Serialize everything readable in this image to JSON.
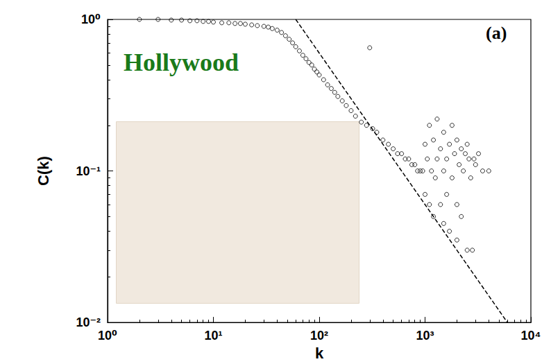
{
  "chart_data": {
    "type": "scatter",
    "x_label": "k",
    "y_label": "C(k)",
    "annotations": [
      {
        "text": "Hollywood",
        "color": "#1a7a1a"
      },
      {
        "text": "(a)",
        "color": "#000000"
      }
    ],
    "log": true,
    "grid": false,
    "xlim": [
      1,
      10000
    ],
    "ylim": [
      0.01,
      1
    ],
    "xticks": [
      {
        "value": 1,
        "label": "10⁰"
      },
      {
        "value": 10,
        "label": "10¹"
      },
      {
        "value": 100,
        "label": "10²"
      },
      {
        "value": 1000,
        "label": "10³"
      },
      {
        "value": 10000,
        "label": "10⁴"
      }
    ],
    "yticks": [
      {
        "value": 0.01,
        "label": "10⁻²"
      },
      {
        "value": 0.1,
        "label": "10⁻¹"
      },
      {
        "value": 1,
        "label": "10⁰"
      }
    ],
    "series": [
      {
        "type": "scatter",
        "marker": "circle-open",
        "color": "#000000",
        "x": [
          2,
          3,
          4,
          5,
          6,
          7,
          8,
          9,
          10,
          12,
          14,
          16,
          18,
          20,
          23,
          26,
          30,
          33,
          36,
          40,
          44,
          48,
          52,
          56,
          60,
          65,
          70,
          75,
          80,
          85,
          90,
          95,
          100,
          110,
          120,
          130,
          140,
          150,
          165,
          180,
          200,
          220,
          250,
          280,
          300,
          320,
          350,
          400,
          450,
          500,
          550,
          600,
          650,
          700,
          750,
          800,
          850,
          900,
          950,
          1000,
          1000,
          1050,
          1100,
          1100,
          1150,
          1200,
          1200,
          1250,
          1300,
          1300,
          1400,
          1400,
          1500,
          1500,
          1500,
          1600,
          1600,
          1700,
          1700,
          1800,
          1800,
          1900,
          2000,
          2000,
          2000,
          2100,
          2200,
          2200,
          2300,
          2400,
          2500,
          2500,
          2600,
          2700,
          2800,
          2900,
          3000,
          3200,
          3500,
          4000
        ],
        "values": [
          1.0,
          1.0,
          0.99,
          0.99,
          0.98,
          0.98,
          0.97,
          0.97,
          0.96,
          0.95,
          0.95,
          0.94,
          0.94,
          0.93,
          0.92,
          0.91,
          0.9,
          0.89,
          0.87,
          0.85,
          0.82,
          0.78,
          0.74,
          0.7,
          0.66,
          0.62,
          0.58,
          0.55,
          0.52,
          0.5,
          0.47,
          0.45,
          0.43,
          0.4,
          0.37,
          0.35,
          0.33,
          0.31,
          0.29,
          0.27,
          0.25,
          0.23,
          0.21,
          0.2,
          0.65,
          0.19,
          0.18,
          0.16,
          0.15,
          0.14,
          0.13,
          0.13,
          0.12,
          0.12,
          0.11,
          0.11,
          0.1,
          0.1,
          0.1,
          0.15,
          0.07,
          0.12,
          0.2,
          0.06,
          0.1,
          0.16,
          0.05,
          0.09,
          0.22,
          0.12,
          0.06,
          0.14,
          0.18,
          0.1,
          0.045,
          0.12,
          0.07,
          0.15,
          0.04,
          0.2,
          0.09,
          0.13,
          0.16,
          0.06,
          0.035,
          0.11,
          0.14,
          0.05,
          0.1,
          0.13,
          0.03,
          0.15,
          0.12,
          0.09,
          0.03,
          0.12,
          0.11,
          0.13,
          0.1,
          0.1
        ]
      },
      {
        "type": "line",
        "line_style": "dashed",
        "color": "#000000",
        "x": [
          60,
          6000
        ],
        "values": [
          1,
          0.01
        ]
      }
    ]
  }
}
